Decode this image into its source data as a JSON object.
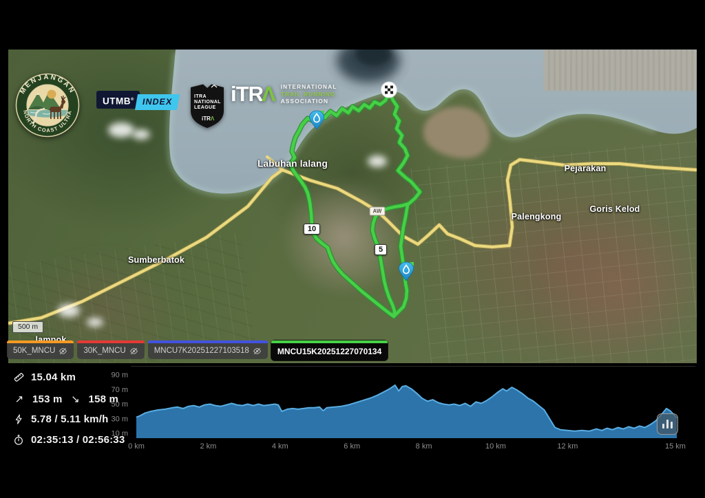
{
  "branding": {
    "badge": {
      "arc_top": "MENJANGAN",
      "arc_bottom": "NORTH COAST ULTRA"
    },
    "utmb": {
      "name": "UTMB",
      "reg": "®",
      "index": "INDEX"
    },
    "league": {
      "line1": "ITRA",
      "line2": "NATIONAL",
      "line3": "LEAGUE",
      "footer_word": "iTR",
      "footer_a": "Λ"
    },
    "itra": {
      "word": "iTR",
      "lambda": "Λ",
      "line1": "INTERNATIONAL",
      "line2": "TRAIL RUNNING",
      "line3": "ASSOCIATION"
    }
  },
  "map": {
    "places": [
      {
        "name": "Labuhan lalang"
      },
      {
        "name": "Sumberbatok"
      },
      {
        "name": "Pejarakan"
      },
      {
        "name": "Goris Kelod"
      },
      {
        "name": "Palengkong"
      },
      {
        "name": "lampok"
      }
    ],
    "km_marker_10": "10",
    "km_marker_5": "5",
    "road_badge": "AW",
    "scale_label": "500 m"
  },
  "tabs": [
    {
      "label": "50K_MNCU",
      "accent": "#f59a23",
      "active": false
    },
    {
      "label": "30K_MNCU",
      "accent": "#e53935",
      "active": false
    },
    {
      "label": "MNCU7K20251227103518",
      "accent": "#4252e0",
      "active": false
    },
    {
      "label": "MNCU15K20251227070134",
      "accent": "#47d147",
      "active": true
    }
  ],
  "stats": {
    "distance": "15.04 km",
    "ascent_arrow": "↗",
    "ascent": "153 m",
    "descent_arrow": "↘",
    "descent": "158 m",
    "speed": "5.78 / 5.11 km/h",
    "time": "02:35:13 / 02:56:33"
  },
  "chart_data": {
    "type": "area",
    "xlabel_ticks": [
      "0 km",
      "2 km",
      "4 km",
      "6 km",
      "8 km",
      "10 km",
      "12 km",
      "15 km"
    ],
    "x_tick_km": [
      0,
      2,
      4,
      6,
      8,
      10,
      12,
      15
    ],
    "ylabel_ticks": [
      "10 m",
      "30 m",
      "50 m",
      "70 m",
      "90 m"
    ],
    "y_tick_m": [
      10,
      30,
      50,
      70,
      90
    ],
    "xlim": [
      0,
      15.5
    ],
    "ylim": [
      0,
      95
    ],
    "grid": false,
    "fill_color": "#2e7ab3",
    "line_color": "#59aee3",
    "points": [
      [
        0,
        32
      ],
      [
        0.1,
        34
      ],
      [
        0.25,
        38
      ],
      [
        0.4,
        40
      ],
      [
        0.6,
        42
      ],
      [
        0.8,
        43
      ],
      [
        1.0,
        45
      ],
      [
        1.15,
        46
      ],
      [
        1.3,
        44
      ],
      [
        1.45,
        47
      ],
      [
        1.6,
        48
      ],
      [
        1.75,
        46
      ],
      [
        1.9,
        49
      ],
      [
        2.05,
        50
      ],
      [
        2.2,
        48
      ],
      [
        2.35,
        47
      ],
      [
        2.5,
        49
      ],
      [
        2.65,
        51
      ],
      [
        2.8,
        49
      ],
      [
        2.95,
        48
      ],
      [
        3.1,
        50
      ],
      [
        3.25,
        48
      ],
      [
        3.4,
        50
      ],
      [
        3.55,
        48
      ],
      [
        3.7,
        49
      ],
      [
        3.85,
        50
      ],
      [
        3.95,
        49
      ],
      [
        4.05,
        40
      ],
      [
        4.2,
        43
      ],
      [
        4.35,
        44
      ],
      [
        4.5,
        43
      ],
      [
        4.65,
        44
      ],
      [
        4.8,
        45
      ],
      [
        4.95,
        45
      ],
      [
        5.1,
        46
      ],
      [
        5.2,
        41
      ],
      [
        5.3,
        45
      ],
      [
        5.5,
        46
      ],
      [
        5.7,
        47
      ],
      [
        5.9,
        49
      ],
      [
        6.1,
        52
      ],
      [
        6.3,
        55
      ],
      [
        6.5,
        58
      ],
      [
        6.7,
        62
      ],
      [
        6.9,
        67
      ],
      [
        7.05,
        71
      ],
      [
        7.2,
        76
      ],
      [
        7.3,
        68
      ],
      [
        7.4,
        74
      ],
      [
        7.5,
        75
      ],
      [
        7.65,
        71
      ],
      [
        7.8,
        65
      ],
      [
        7.95,
        58
      ],
      [
        8.1,
        54
      ],
      [
        8.25,
        56
      ],
      [
        8.4,
        52
      ],
      [
        8.55,
        50
      ],
      [
        8.7,
        49
      ],
      [
        8.85,
        50
      ],
      [
        9.0,
        48
      ],
      [
        9.15,
        51
      ],
      [
        9.3,
        47
      ],
      [
        9.45,
        53
      ],
      [
        9.6,
        51
      ],
      [
        9.75,
        55
      ],
      [
        9.9,
        60
      ],
      [
        10.05,
        66
      ],
      [
        10.2,
        71
      ],
      [
        10.3,
        68
      ],
      [
        10.45,
        73
      ],
      [
        10.6,
        69
      ],
      [
        10.75,
        64
      ],
      [
        10.9,
        58
      ],
      [
        11.05,
        54
      ],
      [
        11.2,
        48
      ],
      [
        11.35,
        42
      ],
      [
        11.5,
        30
      ],
      [
        11.65,
        18
      ],
      [
        11.8,
        15
      ],
      [
        12.0,
        14
      ],
      [
        12.2,
        13
      ],
      [
        12.4,
        14
      ],
      [
        12.6,
        13
      ],
      [
        12.8,
        16
      ],
      [
        12.95,
        14
      ],
      [
        13.1,
        17
      ],
      [
        13.25,
        15
      ],
      [
        13.4,
        18
      ],
      [
        13.55,
        16
      ],
      [
        13.7,
        19
      ],
      [
        13.85,
        17
      ],
      [
        14.0,
        20
      ],
      [
        14.15,
        18
      ],
      [
        14.3,
        22
      ],
      [
        14.45,
        27
      ],
      [
        14.6,
        35
      ],
      [
        14.75,
        44
      ],
      [
        14.85,
        41
      ],
      [
        14.95,
        36
      ],
      [
        15.04,
        31
      ]
    ]
  }
}
